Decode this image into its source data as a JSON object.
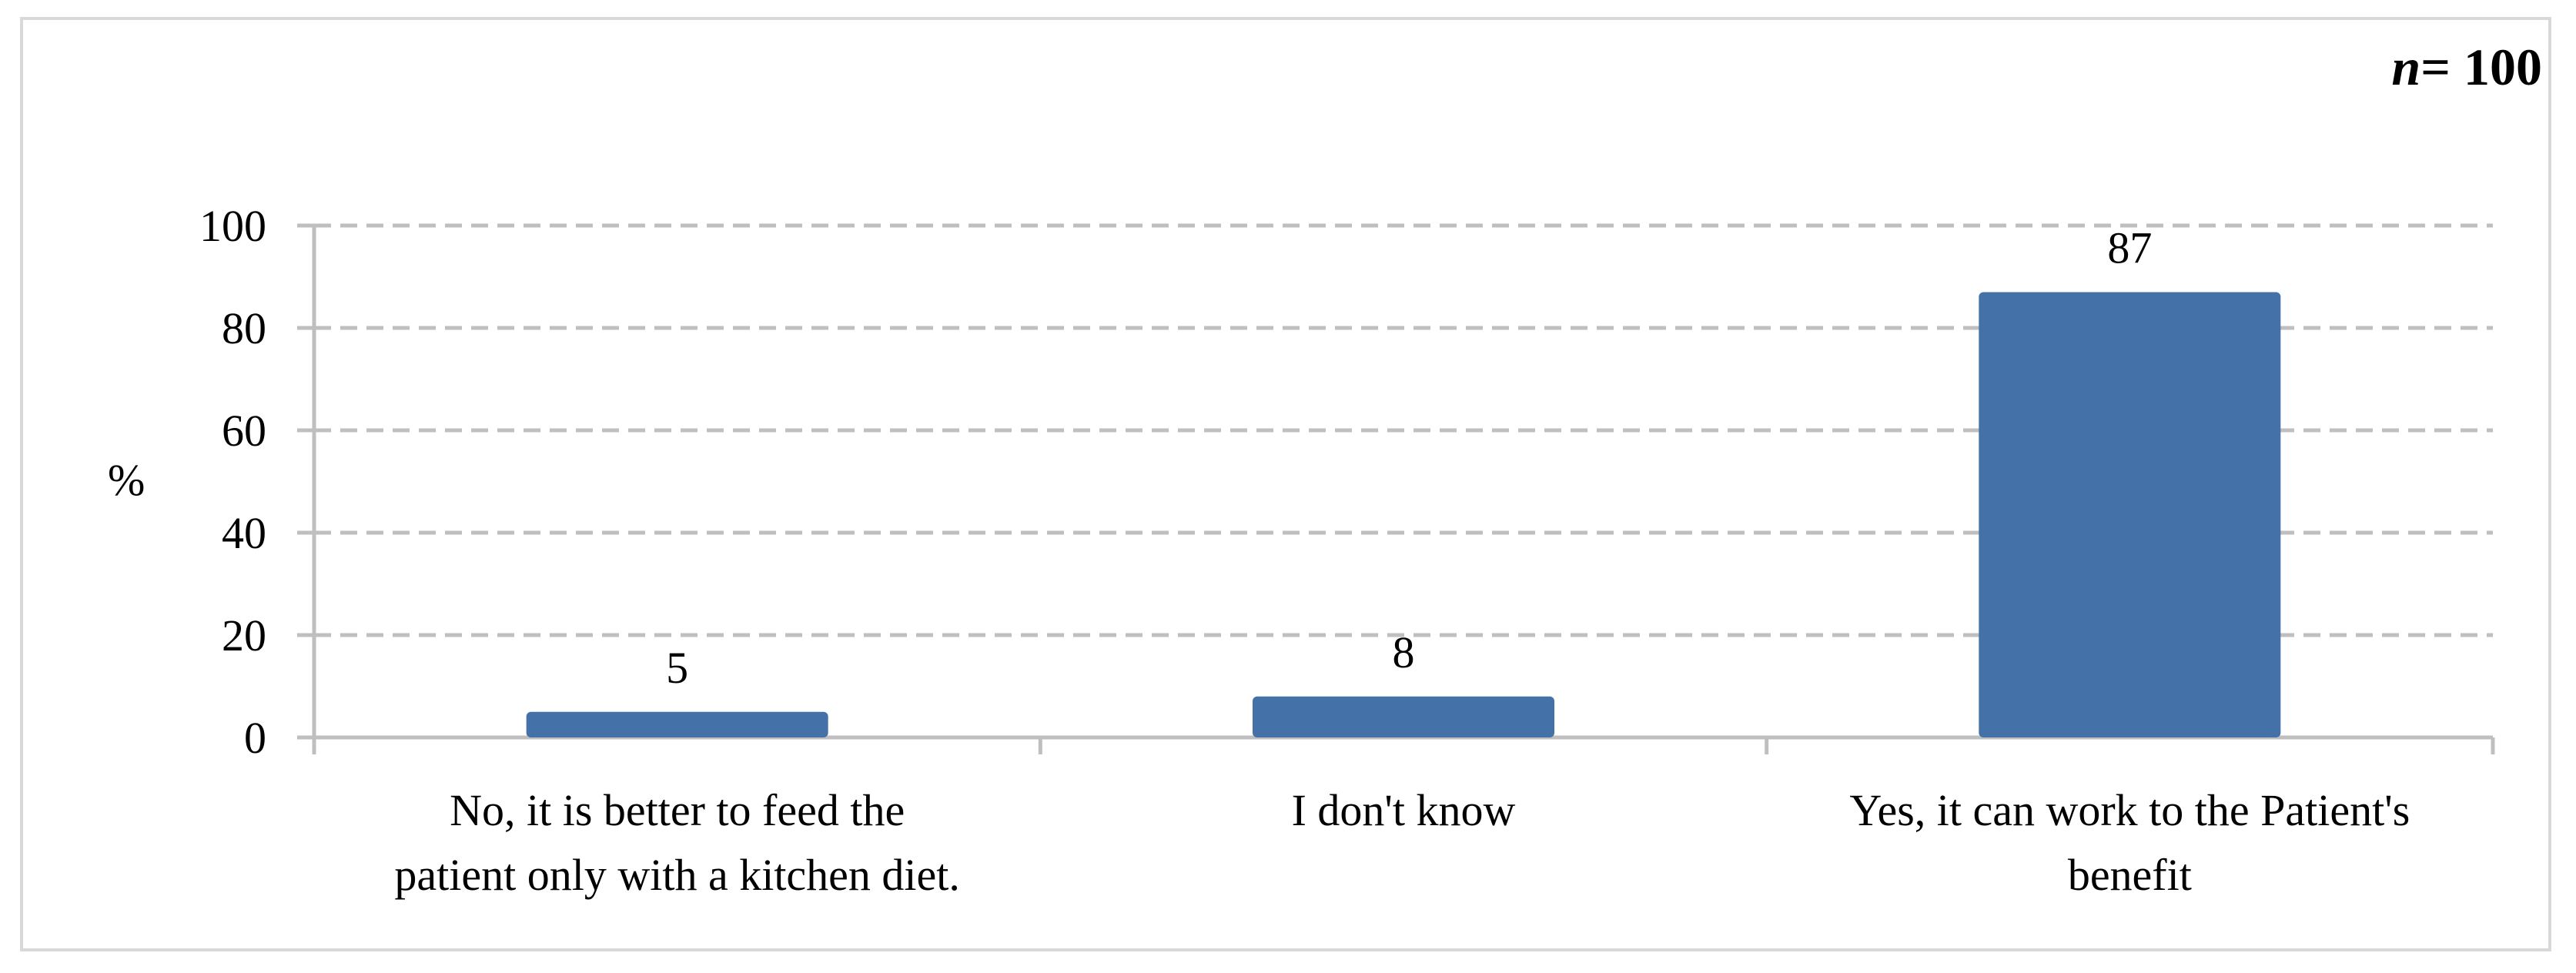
{
  "chart_data": {
    "type": "bar",
    "categories": [
      [
        "No, it is better to feed the",
        "patient only with a kitchen diet."
      ],
      [
        "I don't know"
      ],
      [
        "Yes, it can work to the Patient's",
        "benefit"
      ]
    ],
    "values": [
      5,
      8,
      87
    ],
    "data_labels": [
      "5",
      "8",
      "87"
    ],
    "ylabel": "%",
    "ylim": [
      0,
      100
    ],
    "yticks": [
      0,
      20,
      40,
      60,
      80,
      100
    ],
    "grid": true,
    "legend": "none",
    "bar_color": "#4472a8",
    "gridline_color": "#bfbfbf",
    "axis_color": "#bfbfbf",
    "annotation": {
      "var": "n",
      "text": "= 100"
    }
  }
}
